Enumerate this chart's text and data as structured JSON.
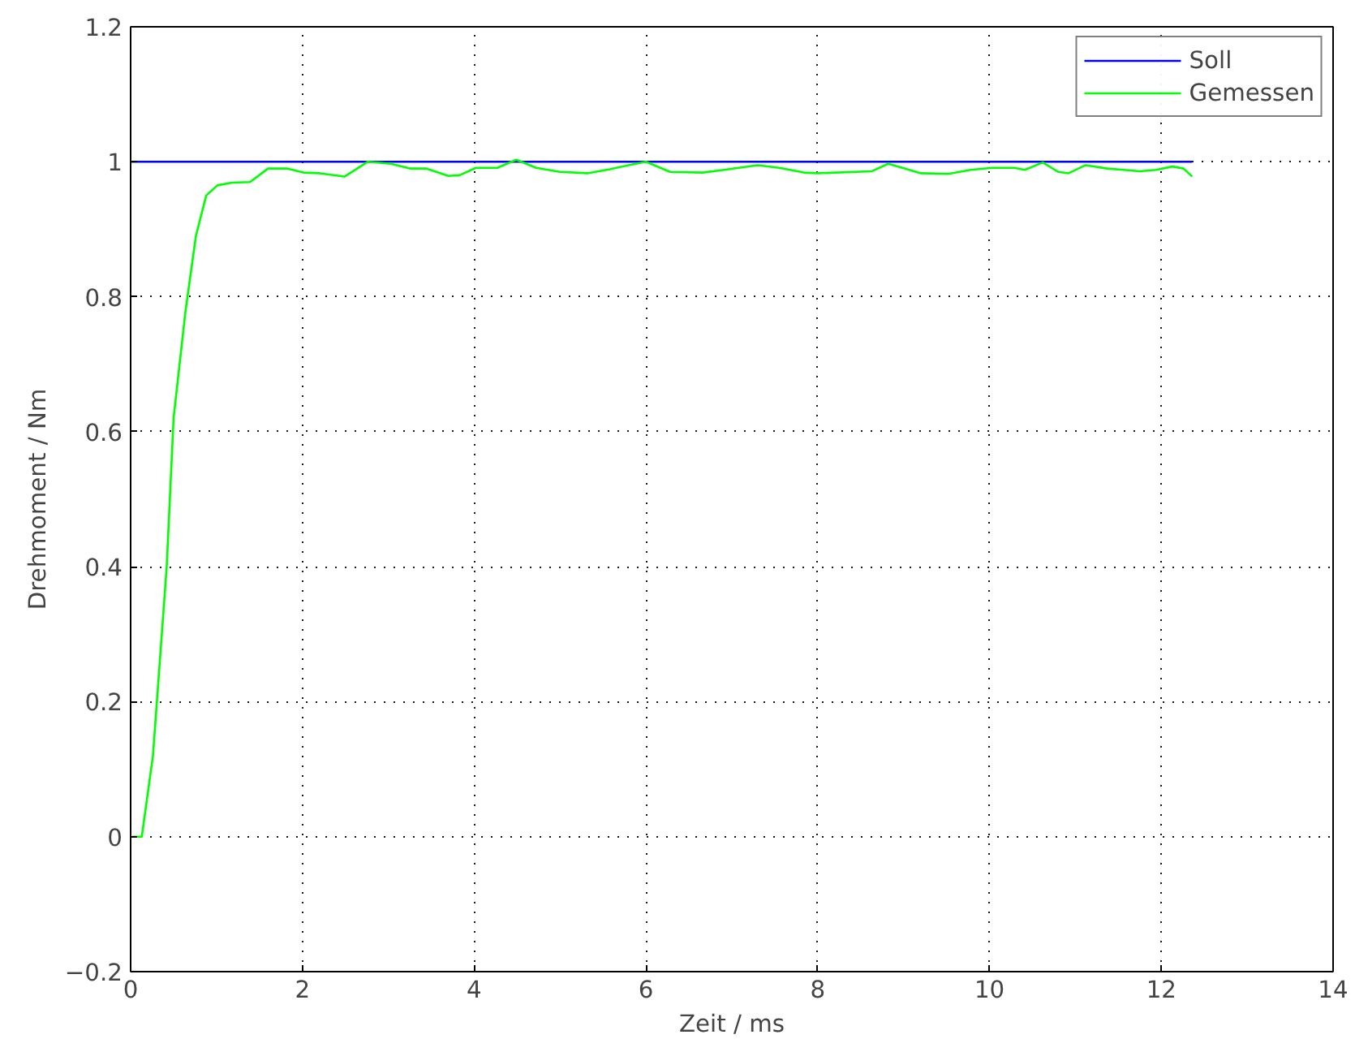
{
  "chart_data": {
    "type": "line",
    "xlabel": "Zeit / ms",
    "ylabel": "Drehmoment / Nm",
    "xlim": [
      0,
      14
    ],
    "ylim": [
      -0.2,
      1.2
    ],
    "xticks": [
      0,
      2,
      4,
      6,
      8,
      10,
      12,
      14
    ],
    "yticks": [
      {
        "value": -0.2,
        "label": "−0.2"
      },
      0,
      0.2,
      0.4,
      0.6,
      0.8,
      1,
      1.2
    ],
    "grid": true,
    "legend": "top right",
    "line_style": "solid",
    "marker": "none",
    "series": [
      {
        "name": "Soll",
        "color": "#0000ff",
        "x": [
          0,
          12.36
        ],
        "values": [
          1,
          1
        ]
      },
      {
        "name": "Gemessen",
        "color": "#00ff00",
        "x": [
          0.02,
          0.13,
          0.26,
          0.42,
          0.5,
          0.64,
          0.76,
          0.88,
          1.01,
          1.18,
          1.39,
          1.6,
          1.82,
          2.01,
          2.2,
          2.49,
          2.76,
          3.03,
          3.25,
          3.44,
          3.7,
          3.83,
          4.02,
          4.27,
          4.49,
          4.72,
          5.0,
          5.32,
          5.58,
          5.8,
          6.0,
          6.28,
          6.66,
          6.91,
          7.3,
          7.55,
          7.84,
          8.0,
          8.63,
          8.82,
          9.01,
          9.2,
          9.52,
          9.78,
          10.03,
          10.29,
          10.41,
          10.62,
          10.8,
          10.92,
          11.12,
          11.37,
          11.56,
          11.75,
          11.94,
          12.13,
          12.26,
          12.36
        ],
        "values": [
          0,
          0,
          0.12,
          0.4,
          0.62,
          0.78,
          0.89,
          0.95,
          0.965,
          0.969,
          0.97,
          0.99,
          0.99,
          0.984,
          0.983,
          0.978,
          1.0,
          0.997,
          0.99,
          0.99,
          0.979,
          0.98,
          0.991,
          0.991,
          1.003,
          0.991,
          0.985,
          0.983,
          0.989,
          0.995,
          1.0,
          0.985,
          0.984,
          0.988,
          0.995,
          0.991,
          0.984,
          0.983,
          0.986,
          0.997,
          0.99,
          0.983,
          0.982,
          0.988,
          0.991,
          0.991,
          0.988,
          0.999,
          0.985,
          0.983,
          0.995,
          0.99,
          0.988,
          0.986,
          0.988,
          0.993,
          0.99,
          0.978
        ]
      }
    ]
  }
}
